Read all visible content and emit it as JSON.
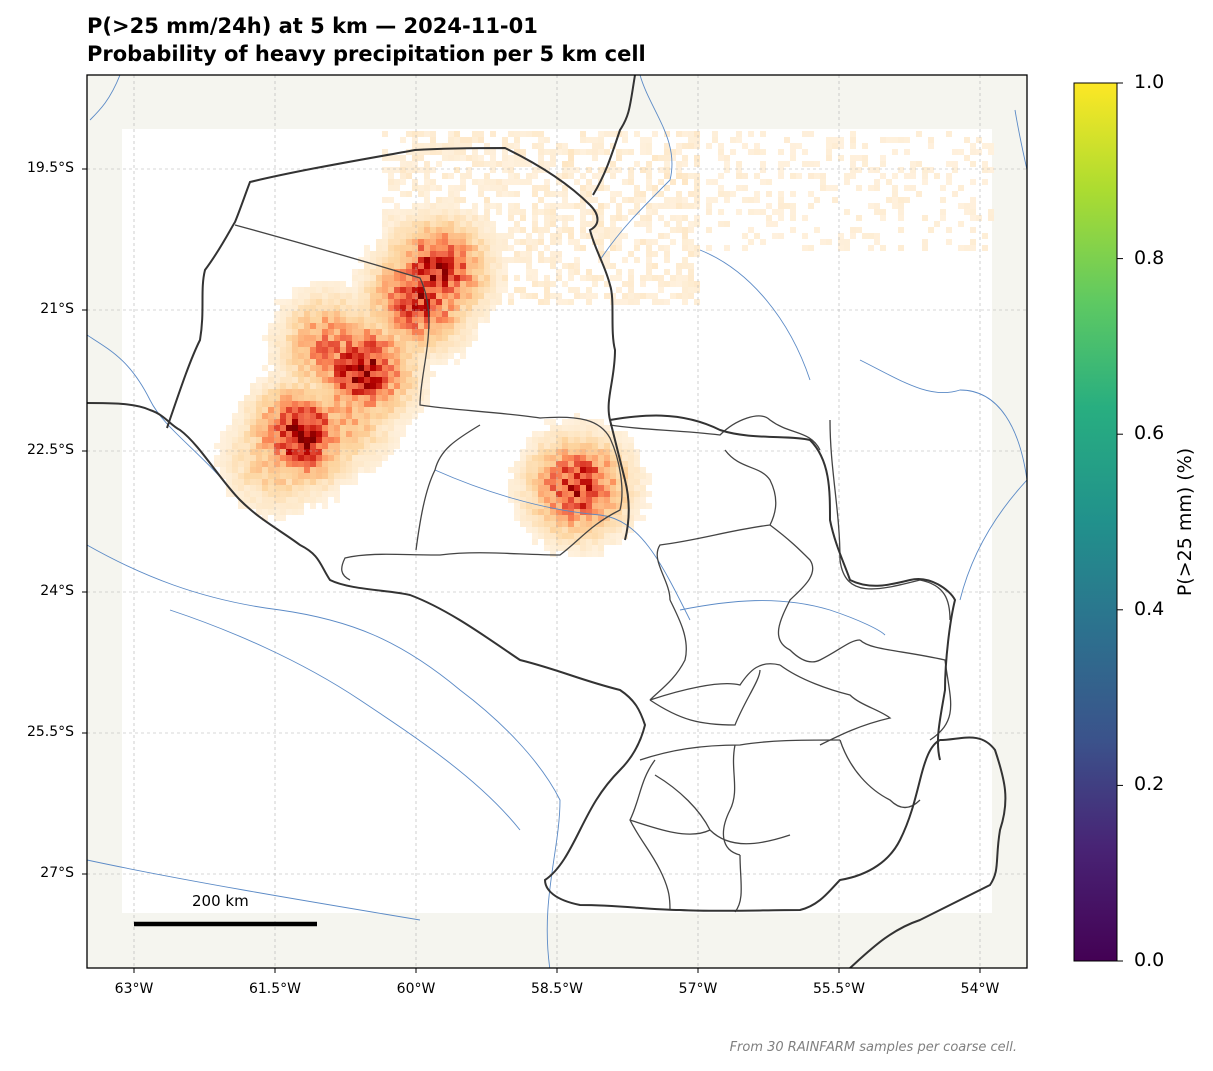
{
  "title": {
    "line1": "P(>25 mm/24h) at 5 km — 2024-11-01",
    "line2": "Probability of heavy precipitation per 5 km cell"
  },
  "map": {
    "lon_range": [
      -63.5,
      -53.5
    ],
    "lat_range": [
      -28.0,
      -18.5
    ],
    "x_ticks": [
      "63°W",
      "61.5°W",
      "60°W",
      "58.5°W",
      "57°W",
      "55.5°W",
      "54°W"
    ],
    "y_ticks": [
      "19.5°S",
      "21°S",
      "22.5°S",
      "24°S",
      "25.5°S",
      "27°S"
    ],
    "land_color": "#f5f5ef",
    "river_color": "#5b8ac6",
    "border_color": "#333333",
    "gridlines": true,
    "scale_bar_label": "200 km"
  },
  "colorbar": {
    "label": "P(>25 mm) (%)",
    "ticks": [
      "0.0",
      "0.2",
      "0.4",
      "0.6",
      "0.8",
      "1.0"
    ],
    "colormap": "viridis"
  },
  "data_colormap": "OrRd",
  "footnote": "From 30 RAINFARM samples per coarse cell.",
  "hotspots": [
    {
      "lon": -60.0,
      "lat": -20.85,
      "p": 0.85
    },
    {
      "lon": -59.8,
      "lat": -20.55,
      "p": 0.9
    },
    {
      "lon": -60.6,
      "lat": -21.6,
      "p": 0.95
    },
    {
      "lon": -61.25,
      "lat": -22.3,
      "p": 0.95
    },
    {
      "lon": -60.95,
      "lat": -21.35,
      "p": 0.6
    },
    {
      "lon": -58.3,
      "lat": -22.85,
      "p": 0.85
    },
    {
      "lon": -61.5,
      "lat": -22.55,
      "p": 0.4
    },
    {
      "lon": -60.8,
      "lat": -22.1,
      "p": 0.45
    }
  ]
}
